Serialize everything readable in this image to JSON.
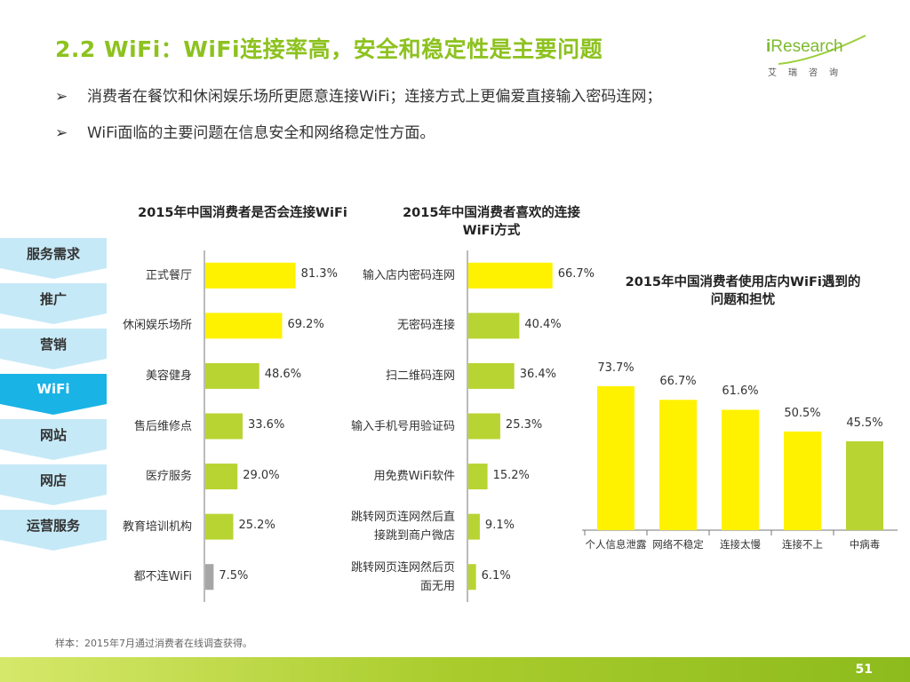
{
  "title": "2.2 WiFi：WiFi连接率高，安全和稳定性是主要问题",
  "logo": {
    "brand_prefix": "i",
    "brand_text": "Research",
    "cn": "艾瑞咨询"
  },
  "bullets": [
    {
      "mark": "➢",
      "text": "消费者在餐饮和休闲娱乐场所更愿意连接WiFi；连接方式上更偏爱直接输入密码连网；"
    },
    {
      "mark": "➢",
      "text": "WiFi面临的主要问题在信息安全和网络稳定性方面。"
    }
  ],
  "nav": {
    "items": [
      {
        "label": "服务需求",
        "active": false
      },
      {
        "label": "推广",
        "active": false
      },
      {
        "label": "营销",
        "active": false
      },
      {
        "label": "WiFi",
        "active": true
      },
      {
        "label": "网站",
        "active": false
      },
      {
        "label": "网店",
        "active": false
      },
      {
        "label": "运营服务",
        "active": false
      }
    ]
  },
  "colors": {
    "accent_green": "#8dc21f",
    "bar_yellow": "#fff200",
    "bar_green": "#b8d432",
    "bar_gray": "#a6a6a6",
    "nav_light": "#c6e9f7",
    "nav_active": "#1ab3e6"
  },
  "chart_data": [
    {
      "type": "bar",
      "orientation": "horizontal",
      "title": "2015年中国消费者是否会连接WiFi",
      "categories": [
        "正式餐厅",
        "休闲娱乐场所",
        "美容健身",
        "售后维修点",
        "医疗服务",
        "教育培训机构",
        "都不连WiFi"
      ],
      "values": [
        81.3,
        69.2,
        48.6,
        33.6,
        29.0,
        25.2,
        7.5
      ],
      "value_labels": [
        "81.3%",
        "69.2%",
        "48.6%",
        "33.6%",
        "29.0%",
        "25.2%",
        "7.5%"
      ],
      "bar_colors": [
        "#fff200",
        "#fff200",
        "#b8d432",
        "#b8d432",
        "#b8d432",
        "#b8d432",
        "#a6a6a6"
      ],
      "xlim": [
        0,
        100
      ]
    },
    {
      "type": "bar",
      "orientation": "horizontal",
      "title": "2015年中国消费者喜欢的连接WiFi方式",
      "categories": [
        "输入店内密码连网",
        "无密码连接",
        "扫二维码连网",
        "输入手机号用验证码",
        "用免费WiFi软件",
        "跳转网页连网然后直接跳到商户微店",
        "跳转网页连网然后页面无用"
      ],
      "category_lines": [
        [
          "输入店内密码连网"
        ],
        [
          "无密码连接"
        ],
        [
          "扫二维码连网"
        ],
        [
          "输入手机号用验证码"
        ],
        [
          "用免费WiFi软件"
        ],
        [
          "跳转网页连网然后直",
          "接跳到商户微店"
        ],
        [
          "跳转网页连网然后页",
          "面无用"
        ]
      ],
      "values": [
        66.7,
        40.4,
        36.4,
        25.3,
        15.2,
        9.1,
        6.1
      ],
      "value_labels": [
        "66.7%",
        "40.4%",
        "36.4%",
        "25.3%",
        "15.2%",
        "9.1%",
        "6.1%"
      ],
      "bar_colors": [
        "#fff200",
        "#b8d432",
        "#b8d432",
        "#b8d432",
        "#b8d432",
        "#b8d432",
        "#b8d432"
      ],
      "xlim": [
        0,
        100
      ]
    },
    {
      "type": "bar",
      "orientation": "vertical",
      "title": "2015年中国消费者使用店内WiFi遇到的问题和担忧",
      "categories": [
        "个人信息泄露",
        "网络不稳定",
        "连接太慢",
        "连接不上",
        "中病毒"
      ],
      "values": [
        73.7,
        66.7,
        61.6,
        50.5,
        45.5
      ],
      "value_labels": [
        "73.7%",
        "66.7%",
        "61.6%",
        "50.5%",
        "45.5%"
      ],
      "bar_colors": [
        "#fff200",
        "#fff200",
        "#fff200",
        "#fff200",
        "#b8d432"
      ],
      "ylim": [
        0,
        100
      ]
    }
  ],
  "note": "样本：2015年7月通过消费者在线调查获得。",
  "page_number": "51"
}
